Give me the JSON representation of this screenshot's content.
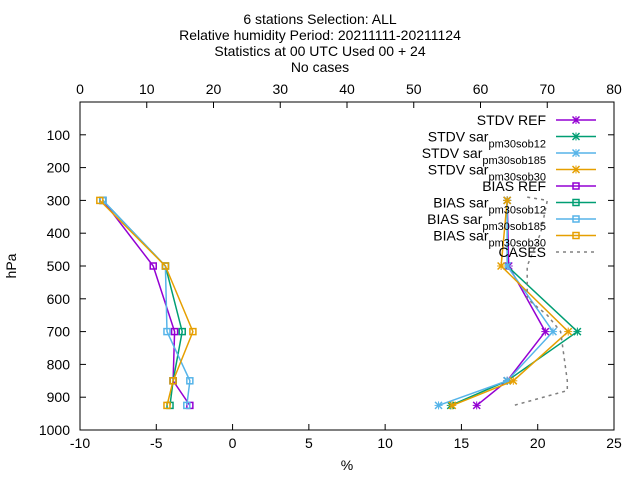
{
  "chart_data": {
    "type": "line",
    "title_lines": [
      "6 stations Selection: ALL",
      "Relative humidity  Period: 20211111-20211124",
      "Statistics at 00 UTC  Used 00 + 24",
      "No cases"
    ],
    "xlabel": "%",
    "ylabel": "hPa",
    "xlim": [
      -10,
      25
    ],
    "ylim": [
      1000,
      0
    ],
    "y_inverted": true,
    "x_ticks": [
      -10,
      -5,
      0,
      5,
      10,
      15,
      20,
      25
    ],
    "y_ticks": [
      100,
      200,
      300,
      400,
      500,
      600,
      700,
      800,
      900,
      1000
    ],
    "y_tick_labels": [
      "100",
      "200",
      "300",
      "400",
      "500",
      "600",
      "700",
      "800",
      "900",
      "1000"
    ],
    "x2lim": [
      0,
      80
    ],
    "x2_ticks": [
      0,
      10,
      20,
      30,
      40,
      50,
      60,
      70,
      80
    ],
    "grid": false,
    "legend_position": "top-right",
    "series": [
      {
        "name": "STDV REF",
        "color": "#9400d3",
        "marker": "x",
        "dash": false,
        "x": [
          18.0,
          18.1,
          20.5,
          18.0,
          16.0
        ],
        "y": [
          300,
          500,
          700,
          850,
          925
        ]
      },
      {
        "name": "STDV sar_pm30_sob12",
        "color": "#009e73",
        "marker": "x",
        "dash": false,
        "x": [
          18.0,
          18.0,
          22.6,
          18.0,
          14.3
        ],
        "y": [
          300,
          500,
          700,
          850,
          925
        ]
      },
      {
        "name": "STDV sar_pm30_sob185",
        "color": "#56b4e9",
        "marker": "x",
        "dash": false,
        "x": [
          18.0,
          18.0,
          21.0,
          18.0,
          13.5
        ],
        "y": [
          300,
          500,
          700,
          850,
          925
        ]
      },
      {
        "name": "STDV sar_pm30_sob30",
        "color": "#e69f00",
        "marker": "x",
        "dash": false,
        "x": [
          18.0,
          17.6,
          22.0,
          18.4,
          14.4
        ],
        "y": [
          300,
          500,
          700,
          850,
          925
        ]
      },
      {
        "name": "BIAS REF",
        "color": "#9400d3",
        "marker": "square",
        "dash": false,
        "x": [
          -8.5,
          -5.2,
          -3.8,
          -3.9,
          -2.8
        ],
        "y": [
          300,
          500,
          700,
          850,
          925
        ]
      },
      {
        "name": "BIAS sar_pm30_sob12",
        "color": "#009e73",
        "marker": "square",
        "dash": false,
        "x": [
          -8.5,
          -4.4,
          -3.3,
          -3.9,
          -4.1
        ],
        "y": [
          300,
          500,
          700,
          850,
          925
        ]
      },
      {
        "name": "BIAS sar_pm30_sob185",
        "color": "#56b4e9",
        "marker": "square",
        "dash": false,
        "x": [
          -8.5,
          -4.4,
          -4.3,
          -2.8,
          -3.0
        ],
        "y": [
          300,
          500,
          700,
          850,
          925
        ]
      },
      {
        "name": "BIAS sar_pm30_sob30",
        "color": "#e69f00",
        "marker": "square",
        "dash": false,
        "x": [
          -8.7,
          -4.4,
          -2.6,
          -3.9,
          -4.3
        ],
        "y": [
          300,
          500,
          700,
          850,
          925
        ]
      },
      {
        "name": "CASES",
        "color": "#808080",
        "marker": "none",
        "dash": true,
        "axis": "x2",
        "x": [
          67,
          70,
          69,
          67,
          67,
          70,
          72,
          73,
          73,
          65
        ],
        "y": [
          290,
          300,
          400,
          500,
          600,
          650,
          700,
          850,
          880,
          925
        ]
      }
    ]
  }
}
